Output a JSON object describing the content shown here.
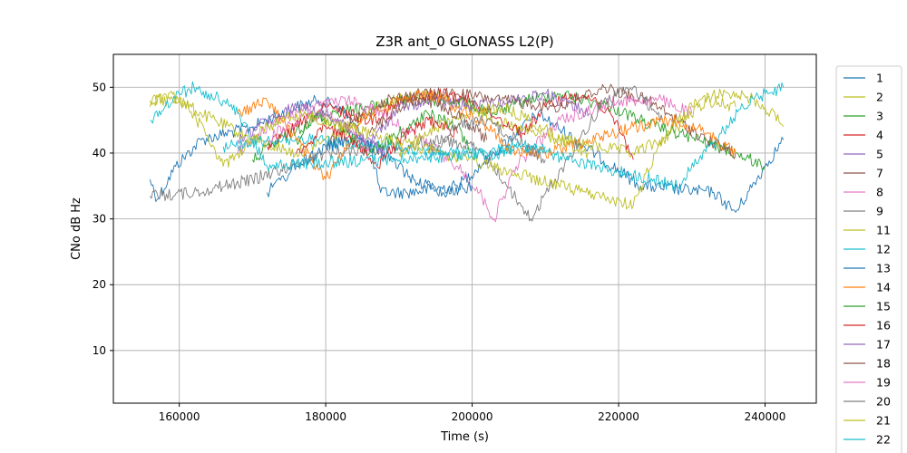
{
  "chart_data": {
    "type": "line",
    "title": "Z3R ant_0 GLONASS L2(P)",
    "xlabel": "Time (s)",
    "ylabel": "CNo dB Hz",
    "xlim": [
      151000,
      247000
    ],
    "ylim": [
      2,
      55
    ],
    "xticks": [
      160000,
      180000,
      200000,
      220000,
      240000
    ],
    "yticks": [
      10,
      20,
      30,
      40,
      50
    ],
    "grid": true,
    "legend_position": "right-outside",
    "series": [
      {
        "name": "1",
        "color": "#1f77b4",
        "x": [
          156000,
          157000,
          159500,
          163000,
          170000,
          176000,
          179000,
          182000,
          186000,
          187500,
          191000,
          198000,
          203000,
          209000,
          223000,
          233000,
          236000,
          240000,
          242500
        ],
        "y": [
          36,
          33,
          38,
          42,
          44,
          47,
          48,
          47,
          41,
          34,
          34,
          35,
          40,
          46,
          35,
          34,
          31,
          38,
          42
        ]
      },
      {
        "name": "2",
        "color": "#bcbd22",
        "x": [
          156000,
          160000,
          163000,
          170000,
          176000,
          182000,
          188000,
          195000,
          200000,
          205000,
          212000,
          222000,
          226000,
          232000,
          236000
        ],
        "y": [
          48,
          48,
          46,
          42,
          40,
          43,
          48,
          49,
          47,
          44,
          42,
          40,
          42,
          48,
          47
        ]
      },
      {
        "name": "3",
        "color": "#2ca02c",
        "x": [
          170000,
          175000,
          180000,
          186000,
          191000,
          198000,
          203000,
          207000,
          212000,
          219000,
          225000,
          231000,
          236000,
          240000
        ],
        "y": [
          39,
          43,
          46,
          47,
          48,
          48,
          46,
          48,
          49,
          47,
          44,
          42,
          40,
          38
        ]
      },
      {
        "name": "4",
        "color": "#d62728",
        "x": [
          172000,
          176000,
          180000,
          186000,
          191000,
          196000,
          200000,
          204000,
          207000,
          210000,
          214000,
          217000,
          220000,
          222000
        ],
        "y": [
          41,
          44,
          47,
          45,
          48,
          49,
          48,
          45,
          43,
          47,
          49,
          48,
          44,
          39
        ]
      },
      {
        "name": "5",
        "color": "#9467bd",
        "x": [
          185000,
          190000,
          195000,
          200000,
          205000,
          210000,
          216000
        ],
        "y": [
          40,
          47,
          48,
          47,
          48,
          49,
          46
        ]
      },
      {
        "name": "7",
        "color": "#8c564b",
        "x": [
          180000,
          184000,
          188000,
          193000,
          198000,
          204000,
          212000,
          218000,
          224000,
          228000,
          232000,
          236000
        ],
        "y": [
          41,
          45,
          48,
          49,
          49,
          48,
          47,
          50,
          48,
          45,
          42,
          40
        ]
      },
      {
        "name": "8",
        "color": "#e377c2",
        "x": [
          168000,
          173000,
          178000,
          183000,
          188000,
          193000,
          198000,
          201000,
          203000,
          206000,
          212000,
          220000,
          226000,
          230000
        ],
        "y": [
          40,
          45,
          47,
          48,
          46,
          42,
          38,
          34,
          30,
          38,
          45,
          48,
          48,
          46
        ]
      },
      {
        "name": "9",
        "color": "#7f7f7f",
        "x": [
          156000,
          162000,
          170000,
          180000,
          190000,
          196000,
          200000,
          203000,
          206000,
          208000,
          213000,
          218000,
          222000,
          226000
        ],
        "y": [
          33.5,
          34,
          36,
          40,
          41,
          42,
          41,
          38,
          33,
          30,
          39,
          48,
          50,
          45
        ]
      },
      {
        "name": "11",
        "color": "#bcbd22",
        "x": [
          190000,
          195000,
          200000,
          204000,
          208000,
          212000,
          216000
        ],
        "y": [
          40,
          44,
          46,
          47,
          45,
          42,
          40
        ]
      },
      {
        "name": "12",
        "color": "#17becf",
        "x": [
          166000,
          172000,
          178000,
          184000,
          190000,
          196000,
          202000,
          206000,
          210000
        ],
        "y": [
          41,
          42,
          42,
          41,
          41,
          40,
          40,
          41,
          41
        ]
      },
      {
        "name": "13",
        "color": "#1f77b4",
        "x": [
          172000,
          176000,
          180000,
          184000,
          188000,
          192000,
          196000,
          200000
        ],
        "y": [
          34,
          38,
          41,
          42,
          40,
          36,
          34,
          35
        ]
      },
      {
        "name": "14",
        "color": "#ff7f0e",
        "x": [
          168000,
          172000,
          176000,
          180000,
          185000,
          190000,
          194000,
          198000,
          202000,
          206000,
          210000,
          216000,
          222000,
          228000,
          232000,
          236000
        ],
        "y": [
          46,
          48,
          42,
          36,
          45,
          48,
          49,
          47,
          44,
          40,
          40,
          42,
          44,
          45,
          43,
          40
        ]
      },
      {
        "name": "15",
        "color": "#2ca02c",
        "x": [
          176000,
          179000,
          182000,
          186000,
          190000,
          194000,
          198000,
          200000
        ],
        "y": [
          42,
          46,
          44,
          40,
          43,
          46,
          44,
          40
        ]
      },
      {
        "name": "16",
        "color": "#d62728",
        "x": [
          176000,
          180000,
          184000,
          187000,
          190000,
          194000,
          198000
        ],
        "y": [
          40,
          44,
          42,
          38,
          42,
          45,
          43
        ]
      },
      {
        "name": "17",
        "color": "#9467bd",
        "x": [
          168000,
          172000,
          176000,
          180000,
          184000,
          188000
        ],
        "y": [
          42,
          45,
          47,
          46,
          43,
          40
        ]
      },
      {
        "name": "18",
        "color": "#8c564b",
        "x": [
          186000,
          190000,
          194000,
          198000,
          202000
        ],
        "y": [
          43,
          47,
          48,
          46,
          42
        ]
      },
      {
        "name": "19",
        "color": "#e377c2",
        "x": [
          172000,
          176000,
          180000,
          184000,
          186000
        ],
        "y": [
          42,
          45,
          46,
          43,
          40
        ]
      },
      {
        "name": "20",
        "color": "#7f7f7f",
        "x": [
          194000,
          198000,
          202000,
          206000,
          210000
        ],
        "y": [
          40,
          44,
          45,
          42,
          39
        ]
      },
      {
        "name": "21",
        "color": "#bcbd22",
        "x": [
          156000,
          158000,
          160000,
          162000,
          164000,
          166000,
          168000,
          170000,
          172000,
          174000,
          176000,
          222000,
          225000,
          228000,
          231000,
          234000,
          237000,
          240000,
          242500
        ],
        "y": [
          47,
          49,
          48,
          46,
          42,
          38,
          40,
          42,
          44,
          45,
          46,
          32,
          40,
          45,
          48,
          49,
          49,
          47,
          44
        ]
      },
      {
        "name": "22",
        "color": "#17becf",
        "x": [
          156000,
          158000,
          160000,
          162000,
          164000,
          166000,
          168000,
          170000,
          172000,
          204000,
          206000,
          208000,
          210000,
          228000,
          231000,
          234000,
          237000,
          240000,
          242500
        ],
        "y": [
          45,
          47,
          49,
          50,
          49,
          48,
          46,
          42,
          38,
          40,
          41,
          41,
          40,
          35,
          39,
          43,
          47,
          49,
          50
        ]
      }
    ]
  }
}
